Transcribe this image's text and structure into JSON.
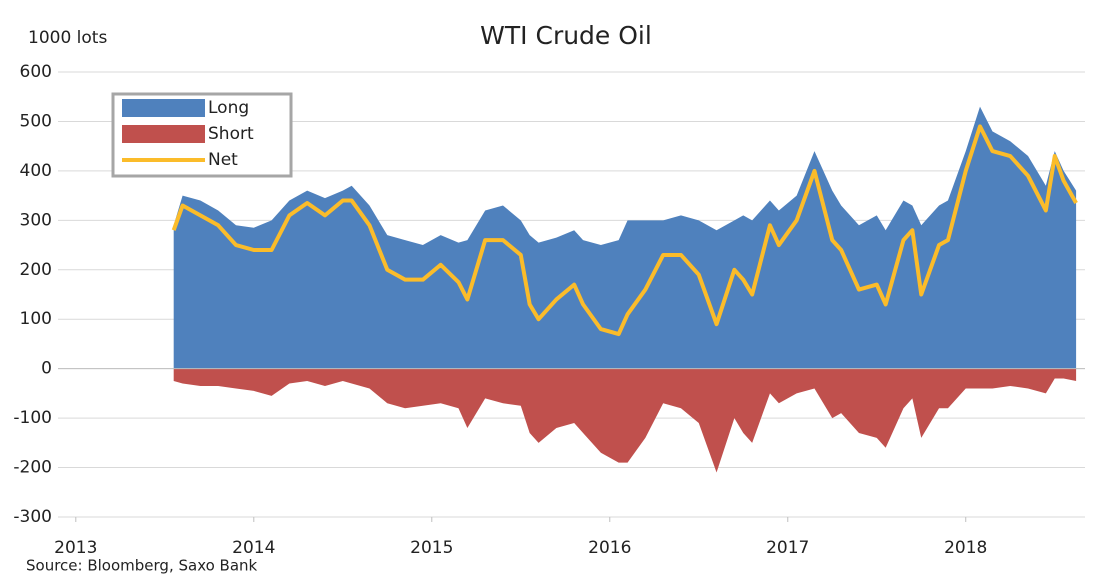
{
  "chart_data": {
    "type": "area",
    "title": "WTI Crude Oil",
    "y_label": "1000 lots",
    "source": "Source: Bloomberg,  Saxo Bank",
    "x": [
      2013.55,
      2013.6,
      2013.7,
      2013.8,
      2013.9,
      2014.0,
      2014.1,
      2014.2,
      2014.3,
      2014.4,
      2014.5,
      2014.55,
      2014.65,
      2014.75,
      2014.85,
      2014.95,
      2015.05,
      2015.15,
      2015.2,
      2015.3,
      2015.4,
      2015.5,
      2015.55,
      2015.6,
      2015.7,
      2015.8,
      2015.85,
      2015.95,
      2016.05,
      2016.1,
      2016.2,
      2016.3,
      2016.4,
      2016.5,
      2016.6,
      2016.7,
      2016.75,
      2016.8,
      2016.9,
      2016.95,
      2017.05,
      2017.15,
      2017.25,
      2017.3,
      2017.4,
      2017.5,
      2017.55,
      2017.65,
      2017.7,
      2017.75,
      2017.85,
      2017.9,
      2018.0,
      2018.08,
      2018.15,
      2018.25,
      2018.35,
      2018.45,
      2018.5,
      2018.55,
      2018.62
    ],
    "series": [
      {
        "name": "Long",
        "color": "#4f81bd",
        "kind": "area",
        "values": [
          290,
          350,
          340,
          320,
          290,
          285,
          300,
          340,
          360,
          345,
          360,
          370,
          330,
          270,
          260,
          250,
          270,
          255,
          260,
          320,
          330,
          300,
          270,
          255,
          265,
          280,
          260,
          250,
          260,
          300,
          300,
          300,
          310,
          300,
          280,
          300,
          310,
          300,
          340,
          320,
          350,
          440,
          360,
          330,
          290,
          310,
          280,
          340,
          330,
          290,
          330,
          340,
          440,
          530,
          480,
          460,
          430,
          370,
          440,
          400,
          360
        ]
      },
      {
        "name": "Short",
        "color": "#c0504d",
        "kind": "area",
        "values": [
          -25,
          -30,
          -35,
          -35,
          -40,
          -45,
          -55,
          -30,
          -25,
          -35,
          -25,
          -30,
          -40,
          -70,
          -80,
          -75,
          -70,
          -80,
          -120,
          -60,
          -70,
          -75,
          -130,
          -150,
          -120,
          -110,
          -130,
          -170,
          -190,
          -190,
          -140,
          -70,
          -80,
          -110,
          -210,
          -100,
          -130,
          -150,
          -50,
          -70,
          -50,
          -40,
          -100,
          -90,
          -130,
          -140,
          -160,
          -80,
          -60,
          -140,
          -80,
          -80,
          -40,
          -40,
          -40,
          -35,
          -40,
          -50,
          -20,
          -20,
          -25
        ]
      },
      {
        "name": "Net",
        "color": "#fbbc2a",
        "kind": "line",
        "values": [
          280,
          330,
          310,
          290,
          250,
          240,
          240,
          310,
          335,
          310,
          340,
          340,
          290,
          200,
          180,
          180,
          210,
          175,
          140,
          260,
          260,
          230,
          130,
          100,
          140,
          170,
          130,
          80,
          70,
          110,
          160,
          230,
          230,
          190,
          90,
          200,
          180,
          150,
          290,
          250,
          300,
          400,
          260,
          240,
          160,
          170,
          130,
          260,
          280,
          150,
          250,
          260,
          400,
          490,
          440,
          430,
          390,
          320,
          430,
          380,
          335
        ]
      }
    ],
    "xlim": [
      2012.9,
      2018.67
    ],
    "xticks": [
      2013,
      2014,
      2015,
      2016,
      2017,
      2018
    ],
    "ylim": [
      -300,
      600
    ],
    "yticks": [
      -300,
      -200,
      -100,
      0,
      100,
      200,
      300,
      400,
      500,
      600
    ],
    "grid": true
  }
}
